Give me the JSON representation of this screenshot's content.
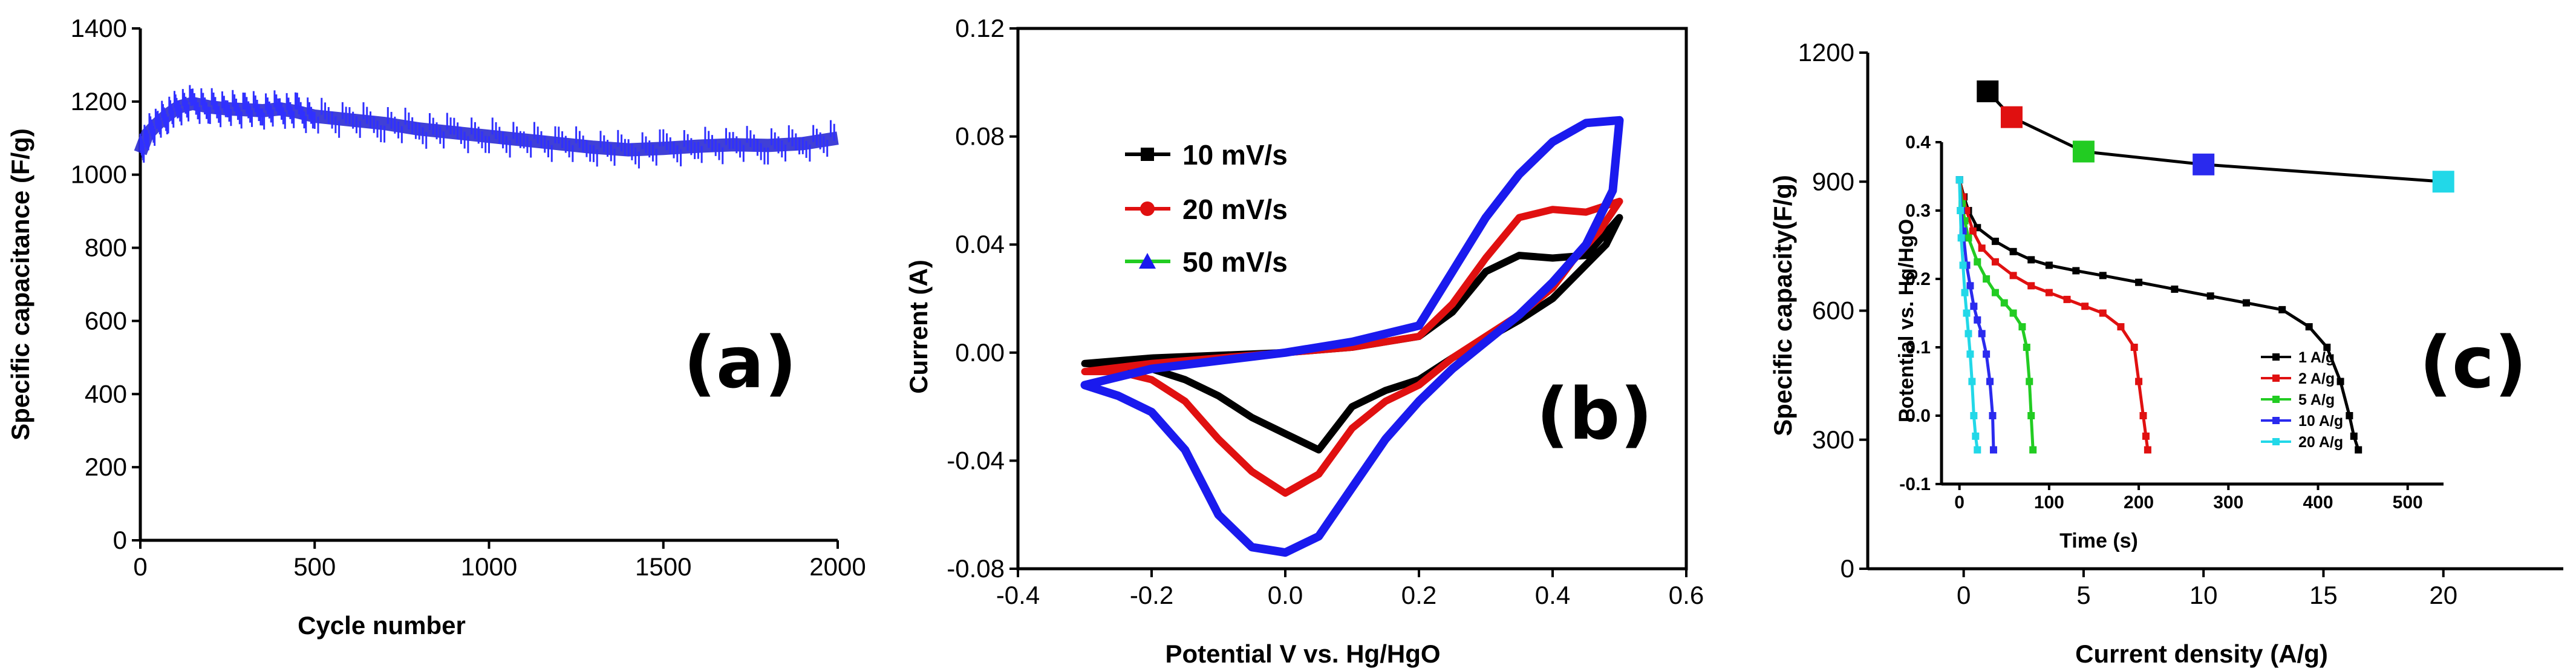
{
  "chart_data": [
    {
      "panel": "a",
      "panel_label": "(a)",
      "type": "line",
      "title": "",
      "xlabel": "Cycle number",
      "ylabel": "Specific capacitance (F/g)",
      "xlim": [
        0,
        2000
      ],
      "ylim": [
        0,
        1400
      ],
      "xticks": [
        0,
        500,
        1000,
        1500,
        2000
      ],
      "yticks": [
        0,
        200,
        400,
        600,
        800,
        1000,
        1200,
        1400
      ],
      "color": "#1f1fd0",
      "series": [
        {
          "name": "capacitance",
          "x": [
            0,
            20,
            50,
            80,
            110,
            150,
            200,
            250,
            300,
            350,
            400,
            450,
            500,
            600,
            700,
            800,
            900,
            1000,
            1100,
            1200,
            1300,
            1400,
            1500,
            1600,
            1700,
            1800,
            1900,
            2000
          ],
          "y": [
            1060,
            1110,
            1140,
            1165,
            1185,
            1195,
            1185,
            1180,
            1178,
            1175,
            1180,
            1172,
            1160,
            1150,
            1140,
            1125,
            1115,
            1105,
            1095,
            1085,
            1075,
            1068,
            1072,
            1078,
            1082,
            1080,
            1085,
            1100
          ]
        }
      ]
    },
    {
      "panel": "b",
      "panel_label": "(b)",
      "type": "line",
      "title": "",
      "xlabel": "Potential V vs. Hg/HgO",
      "ylabel": "Current (A)",
      "xlim": [
        -0.4,
        0.6
      ],
      "ylim": [
        -0.08,
        0.12
      ],
      "xticks": [
        -0.4,
        -0.2,
        0.0,
        0.2,
        0.4,
        0.6
      ],
      "xtick_labels": [
        "-0.4",
        "-0.2",
        "0.0",
        "0.2",
        "0.4",
        "0.6"
      ],
      "yticks": [
        -0.08,
        -0.04,
        0.0,
        0.04,
        0.08,
        0.12
      ],
      "ytick_labels": [
        "-0.08",
        "-0.04",
        "0.00",
        "0.04",
        "0.08",
        "0.12"
      ],
      "legend_position": "upper-left",
      "series": [
        {
          "name": "10 mV/s",
          "color": "#000000",
          "marker": "square",
          "x": [
            -0.3,
            -0.2,
            -0.1,
            0.0,
            0.1,
            0.2,
            0.25,
            0.3,
            0.35,
            0.4,
            0.45,
            0.5,
            0.48,
            0.44,
            0.4,
            0.35,
            0.3,
            0.25,
            0.2,
            0.15,
            0.1,
            0.05,
            0.0,
            -0.05,
            -0.1,
            -0.15,
            -0.2,
            -0.25,
            -0.3
          ],
          "y": [
            -0.004,
            -0.002,
            -0.001,
            0.0,
            0.002,
            0.006,
            0.015,
            0.03,
            0.036,
            0.035,
            0.036,
            0.05,
            0.04,
            0.03,
            0.02,
            0.012,
            0.005,
            -0.002,
            -0.01,
            -0.014,
            -0.02,
            -0.036,
            -0.03,
            -0.024,
            -0.016,
            -0.01,
            -0.006,
            -0.005,
            -0.004
          ]
        },
        {
          "name": "20 mV/s",
          "color": "#e01010",
          "marker": "circle",
          "x": [
            -0.3,
            -0.2,
            -0.1,
            0.0,
            0.1,
            0.2,
            0.25,
            0.3,
            0.35,
            0.4,
            0.45,
            0.5,
            0.47,
            0.43,
            0.4,
            0.35,
            0.3,
            0.25,
            0.2,
            0.15,
            0.1,
            0.05,
            0.0,
            -0.05,
            -0.1,
            -0.15,
            -0.2,
            -0.25,
            -0.3
          ],
          "y": [
            -0.007,
            -0.004,
            -0.002,
            0.0,
            0.002,
            0.006,
            0.018,
            0.035,
            0.05,
            0.053,
            0.052,
            0.056,
            0.045,
            0.034,
            0.024,
            0.014,
            0.006,
            -0.002,
            -0.012,
            -0.018,
            -0.028,
            -0.045,
            -0.052,
            -0.044,
            -0.032,
            -0.018,
            -0.01,
            -0.007,
            -0.007
          ]
        },
        {
          "name": "50 mV/s",
          "color": "#1a1aee",
          "marker": "triangle",
          "x": [
            -0.3,
            -0.2,
            -0.1,
            0.0,
            0.1,
            0.2,
            0.25,
            0.3,
            0.35,
            0.4,
            0.45,
            0.5,
            0.49,
            0.45,
            0.4,
            0.35,
            0.3,
            0.25,
            0.2,
            0.15,
            0.1,
            0.05,
            0.0,
            -0.05,
            -0.1,
            -0.15,
            -0.2,
            -0.25,
            -0.3
          ],
          "y": [
            -0.012,
            -0.006,
            -0.003,
            0.0,
            0.004,
            0.01,
            0.03,
            0.05,
            0.066,
            0.078,
            0.085,
            0.086,
            0.06,
            0.04,
            0.026,
            0.014,
            0.004,
            -0.006,
            -0.018,
            -0.032,
            -0.05,
            -0.068,
            -0.074,
            -0.072,
            -0.06,
            -0.036,
            -0.022,
            -0.016,
            -0.012
          ]
        }
      ]
    },
    {
      "panel": "c",
      "panel_label": "(c)",
      "type": "line",
      "title": "",
      "xlabel": "Current density (A/g)",
      "ylabel": "Specific capacity(F/g)",
      "xlim": [
        -4,
        25
      ],
      "ylim": [
        0,
        1200
      ],
      "xticks": [
        0,
        5,
        10,
        15,
        20
      ],
      "yticks": [
        0,
        300,
        600,
        900,
        1200
      ],
      "series": [
        {
          "name": "capacity",
          "color": "#000000",
          "x": [
            1,
            2,
            5,
            10,
            20
          ],
          "y": [
            1110,
            1050,
            970,
            940,
            900
          ],
          "marker_colors": [
            "#000000",
            "#e01010",
            "#22cc22",
            "#2a2aee",
            "#22d8e8"
          ]
        }
      ],
      "inset": {
        "type": "line",
        "xlabel": "Time (s)",
        "ylabel": "Potential vs. Hg/HgO",
        "xlim": [
          -20,
          540
        ],
        "ylim": [
          -0.1,
          0.4
        ],
        "xticks": [
          0,
          100,
          200,
          300,
          400,
          500
        ],
        "yticks": [
          -0.1,
          0.0,
          0.1,
          0.2,
          0.3,
          0.4
        ],
        "ytick_labels": [
          "-0.1",
          "0.0",
          "0.1",
          "0.2",
          "0.3",
          "0.4"
        ],
        "legend_position": "lower-right",
        "series": [
          {
            "name": "1 A/g",
            "color": "#000000",
            "x": [
              0,
              5,
              10,
              20,
              40,
              60,
              80,
              100,
              130,
              160,
              200,
              240,
              280,
              320,
              360,
              390,
              410,
              425,
              435,
              440,
              445
            ],
            "y": [
              0.345,
              0.32,
              0.3,
              0.275,
              0.255,
              0.24,
              0.228,
              0.22,
              0.212,
              0.205,
              0.195,
              0.185,
              0.175,
              0.165,
              0.155,
              0.13,
              0.1,
              0.05,
              0.0,
              -0.03,
              -0.05
            ]
          },
          {
            "name": "2 A/g",
            "color": "#e01010",
            "x": [
              0,
              4,
              8,
              15,
              25,
              40,
              60,
              80,
              100,
              120,
              140,
              160,
              180,
              195,
              200,
              205,
              208,
              210
            ],
            "y": [
              0.345,
              0.32,
              0.3,
              0.27,
              0.245,
              0.225,
              0.205,
              0.19,
              0.18,
              0.17,
              0.16,
              0.15,
              0.13,
              0.1,
              0.05,
              0.0,
              -0.03,
              -0.05
            ]
          },
          {
            "name": "5 A/g",
            "color": "#22cc22",
            "x": [
              0,
              3,
              6,
              10,
              20,
              30,
              40,
              50,
              60,
              70,
              75,
              78,
              80,
              82
            ],
            "y": [
              0.345,
              0.31,
              0.285,
              0.26,
              0.225,
              0.2,
              0.18,
              0.165,
              0.15,
              0.13,
              0.1,
              0.05,
              0.0,
              -0.05
            ]
          },
          {
            "name": "10 A/g",
            "color": "#2a2aee",
            "x": [
              0,
              2,
              4,
              8,
              12,
              16,
              20,
              25,
              30,
              34,
              37,
              38
            ],
            "y": [
              0.345,
              0.3,
              0.27,
              0.22,
              0.19,
              0.16,
              0.14,
              0.12,
              0.09,
              0.05,
              0.0,
              -0.05
            ]
          },
          {
            "name": "20 A/g",
            "color": "#22d8e8",
            "x": [
              0,
              1,
              2,
              4,
              6,
              8,
              10,
              12,
              14,
              16,
              18,
              20
            ],
            "y": [
              0.345,
              0.3,
              0.26,
              0.22,
              0.18,
              0.15,
              0.12,
              0.09,
              0.05,
              0.0,
              -0.03,
              -0.05
            ]
          }
        ]
      }
    }
  ]
}
